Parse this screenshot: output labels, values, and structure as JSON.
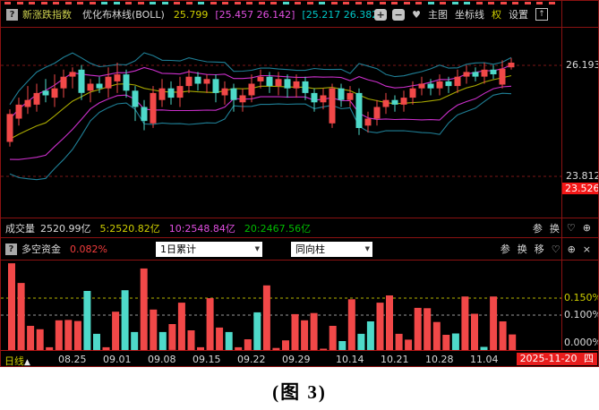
{
  "colors": {
    "up": "#f14848",
    "down": "#4ed9c9",
    "grid": "#7d1717",
    "band_mid": "#a8a800",
    "band_inner": "#cc2fcc",
    "band_outer": "#1f7f96",
    "panel_border": "#8b1212",
    "badge_red": "#f31717"
  },
  "header": {
    "help_icon": "?",
    "title": "新涨跌指数",
    "indicator": "优化布林线(BOLL)",
    "mid_value": "25.799",
    "inner_band": "[25.457 26.142]",
    "outer_band": "[25.217 26.382]",
    "tools": {
      "zoom_in": "+",
      "zoom_out": "−",
      "favorite": "♥",
      "main_chart": "主图",
      "coordinate": "坐标线",
      "rights": "权",
      "settings": "设置",
      "expand": "↑"
    }
  },
  "main_chart_axis": {
    "upper": "26.193",
    "lower": "23.812",
    "last": "23.526"
  },
  "volume_bar": {
    "label": "成交量",
    "total": "2520.99亿",
    "ma5": "5:2520.82亿",
    "ma10": "10:2548.84亿",
    "ma20": "20:2467.56亿",
    "tools": {
      "param": "参",
      "switch": "换",
      "favorite": "♡",
      "zoom": "⊕"
    }
  },
  "fund_panel": {
    "help_icon": "?",
    "label": "多空资金",
    "value": "0.082%",
    "period_select": "1日累计",
    "style_select": "同向柱",
    "tools": {
      "param": "参",
      "switch": "换",
      "move": "移",
      "favorite": "♡",
      "zoom": "⊕",
      "close": "×"
    },
    "axis": {
      "g1": "0.150%",
      "g2": "0.100%",
      "zero": "0.000%"
    }
  },
  "time_axis": {
    "period": "日线",
    "arrow": "▲",
    "date_badge": "2025-11-20",
    "weekday": "四"
  },
  "caption": "(图 3)",
  "chart_data": [
    {
      "type": "candlestick",
      "title": "新涨跌指数 优化布林线(BOLL)",
      "ylim": [
        22.9,
        27.0
      ],
      "grid_levels": [
        26.193,
        23.812
      ],
      "marker_price": 23.526,
      "boll": {
        "mid": 25.799,
        "inner": [
          25.457,
          26.142
        ],
        "outer": [
          25.217,
          26.382
        ]
      },
      "candles": [
        [
          24.55,
          25.15,
          24.45,
          25.25
        ],
        [
          25.05,
          25.35,
          24.9,
          25.5
        ],
        [
          25.3,
          25.45,
          25.15,
          25.75
        ],
        [
          25.35,
          25.6,
          25.2,
          25.8
        ],
        [
          25.65,
          25.55,
          25.4,
          25.9
        ],
        [
          25.5,
          25.7,
          25.3,
          26.0
        ],
        [
          25.7,
          25.95,
          25.5,
          26.1
        ],
        [
          25.95,
          26.05,
          25.7,
          26.15
        ],
        [
          26.1,
          25.6,
          25.45,
          26.2
        ],
        [
          25.65,
          25.8,
          25.4,
          25.9
        ],
        [
          25.8,
          25.7,
          25.6,
          25.95
        ],
        [
          25.7,
          25.95,
          25.5,
          26.15
        ],
        [
          25.85,
          26.0,
          25.6,
          26.25
        ],
        [
          26.0,
          25.65,
          25.5,
          26.1
        ],
        [
          25.65,
          25.3,
          25.0,
          25.75
        ],
        [
          25.3,
          25.0,
          24.8,
          25.45
        ],
        [
          24.95,
          25.6,
          24.85,
          25.75
        ],
        [
          25.45,
          25.7,
          25.3,
          25.9
        ],
        [
          25.7,
          25.5,
          25.35,
          25.85
        ],
        [
          25.5,
          25.75,
          25.3,
          25.95
        ],
        [
          25.75,
          25.95,
          25.6,
          26.1
        ],
        [
          25.95,
          25.8,
          25.65,
          26.05
        ],
        [
          25.8,
          25.9,
          25.6,
          26.0
        ],
        [
          25.9,
          25.6,
          25.4,
          26.0
        ],
        [
          25.55,
          25.7,
          25.35,
          25.85
        ],
        [
          25.7,
          25.45,
          25.2,
          25.8
        ],
        [
          25.4,
          25.55,
          25.2,
          25.7
        ],
        [
          25.55,
          25.8,
          25.4,
          26.0
        ],
        [
          25.85,
          25.95,
          25.7,
          26.1
        ],
        [
          25.95,
          25.75,
          25.6,
          26.05
        ],
        [
          25.75,
          25.9,
          25.55,
          26.05
        ],
        [
          25.9,
          25.7,
          25.5,
          26.0
        ],
        [
          25.7,
          25.85,
          25.5,
          26.0
        ],
        [
          25.85,
          25.6,
          25.45,
          25.95
        ],
        [
          25.6,
          25.4,
          25.2,
          25.7
        ],
        [
          25.4,
          25.55,
          25.25,
          25.7
        ],
        [
          24.95,
          25.7,
          24.85,
          25.8
        ],
        [
          25.7,
          25.45,
          25.3,
          25.8
        ],
        [
          25.45,
          25.6,
          25.3,
          25.75
        ],
        [
          25.6,
          24.85,
          24.7,
          25.7
        ],
        [
          24.9,
          25.05,
          24.75,
          25.2
        ],
        [
          25.05,
          25.3,
          24.9,
          25.45
        ],
        [
          25.3,
          25.45,
          25.15,
          25.6
        ],
        [
          25.45,
          25.35,
          25.2,
          25.55
        ],
        [
          25.35,
          25.5,
          25.2,
          25.65
        ],
        [
          25.5,
          25.7,
          25.35,
          25.85
        ],
        [
          25.7,
          25.8,
          25.55,
          25.95
        ],
        [
          25.8,
          25.7,
          25.55,
          25.9
        ],
        [
          25.7,
          25.85,
          25.55,
          26.0
        ],
        [
          25.85,
          25.75,
          25.6,
          25.95
        ],
        [
          25.75,
          25.95,
          25.6,
          26.1
        ],
        [
          25.95,
          26.05,
          25.8,
          26.2
        ],
        [
          26.05,
          25.95,
          25.85,
          26.15
        ],
        [
          25.95,
          26.1,
          25.8,
          26.25
        ],
        [
          26.1,
          26.0,
          25.9,
          26.2
        ],
        [
          25.78,
          26.12,
          25.7,
          26.3
        ],
        [
          26.15,
          26.25,
          26.1,
          26.35
        ]
      ],
      "x_ticks": [
        {
          "label": "08.25",
          "index": 7
        },
        {
          "label": "09.01",
          "index": 12
        },
        {
          "label": "09.08",
          "index": 17
        },
        {
          "label": "09.15",
          "index": 22
        },
        {
          "label": "09.22",
          "index": 27
        },
        {
          "label": "09.29",
          "index": 32
        },
        {
          "label": "10.14",
          "index": 38
        },
        {
          "label": "10.21",
          "index": 43
        },
        {
          "label": "10.28",
          "index": 48
        },
        {
          "label": "11.04",
          "index": 53
        }
      ]
    },
    {
      "type": "bar",
      "title": "多空资金 1日累计 同向柱",
      "unit": "%",
      "ylim": [
        0,
        0.26
      ],
      "gridlines": [
        {
          "value": 0.15,
          "color": "yellow"
        },
        {
          "value": 0.1,
          "color": "gray"
        }
      ],
      "zero_label": 0.0,
      "values": [
        0.251,
        0.194,
        0.07,
        0.06,
        0.008,
        0.086,
        0.087,
        0.084,
        0.171,
        0.047,
        0.008,
        0.111,
        0.173,
        0.052,
        0.236,
        0.117,
        0.052,
        0.075,
        0.137,
        0.057,
        0.008,
        0.15,
        0.065,
        0.052,
        0.008,
        0.031,
        0.109,
        0.187,
        0.006,
        0.028,
        0.104,
        0.086,
        0.107,
        0.004,
        0.07,
        0.026,
        0.147,
        0.047,
        0.083,
        0.137,
        0.158,
        0.047,
        0.03,
        0.122,
        0.121,
        0.081,
        0.044,
        0.048,
        0.155,
        0.105,
        0.009,
        0.155,
        0.083,
        0.045
      ],
      "colors": [
        "r",
        "r",
        "r",
        "r",
        "r",
        "r",
        "r",
        "r",
        "c",
        "c",
        "r",
        "r",
        "c",
        "c",
        "r",
        "r",
        "c",
        "r",
        "r",
        "r",
        "r",
        "r",
        "r",
        "c",
        "r",
        "r",
        "c",
        "r",
        "r",
        "r",
        "r",
        "r",
        "r",
        "r",
        "r",
        "c",
        "r",
        "c",
        "c",
        "r",
        "r",
        "r",
        "r",
        "r",
        "r",
        "r",
        "r",
        "c",
        "r",
        "r",
        "c",
        "r",
        "r",
        "r"
      ]
    }
  ]
}
